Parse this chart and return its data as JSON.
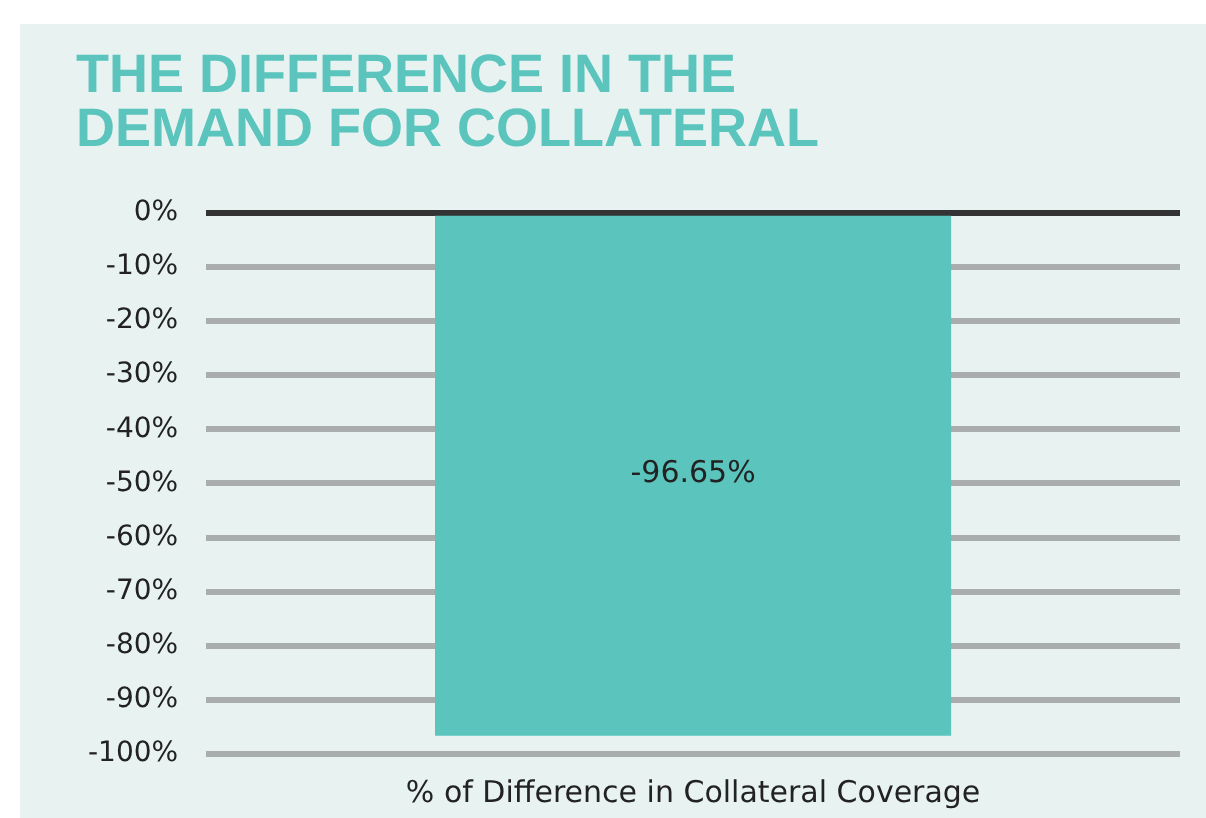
{
  "chart_data": {
    "type": "bar",
    "title": "THE DIFFERENCE IN THE DEMAND FOR COLLATERAL",
    "categories": [
      "% of Difference in Collateral Coverage"
    ],
    "values": [
      -96.65
    ],
    "color": "#5bc4bd",
    "value_labels": [
      "-96.65%"
    ],
    "ylim": [
      -100,
      0
    ],
    "yticks": [
      {
        "value": 0,
        "label": "0%"
      },
      {
        "value": -10,
        "label": "-10%"
      },
      {
        "value": -20,
        "label": "-20%"
      },
      {
        "value": -30,
        "label": "-30%"
      },
      {
        "value": -40,
        "label": "-40%"
      },
      {
        "value": -50,
        "label": "-50%"
      },
      {
        "value": -60,
        "label": "-60%"
      },
      {
        "value": -70,
        "label": "-70%"
      },
      {
        "value": -80,
        "label": "-80%"
      },
      {
        "value": -90,
        "label": "-90%"
      },
      {
        "value": -100,
        "label": "-100%"
      }
    ],
    "grid": "y"
  }
}
